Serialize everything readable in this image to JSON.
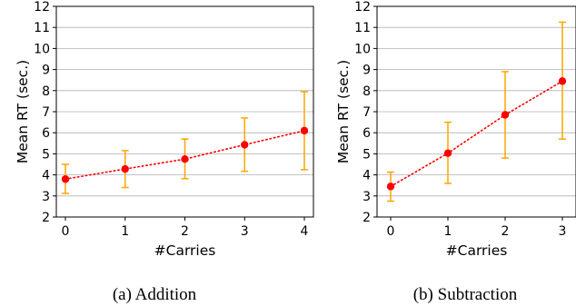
{
  "chart_data": [
    {
      "type": "line",
      "caption": "(a) Addition",
      "xlabel": "#Carries",
      "ylabel": "Mean RT (sec.)",
      "x": [
        0,
        1,
        2,
        3,
        4
      ],
      "ylim": [
        2,
        12
      ],
      "yticks": [
        2,
        3,
        4,
        5,
        6,
        7,
        8,
        9,
        10,
        11,
        12
      ],
      "grid": "horizontal",
      "series": [
        {
          "values": [
            3.8,
            4.28,
            4.75,
            5.43,
            6.1
          ],
          "error_low": [
            3.12,
            3.4,
            3.82,
            4.17,
            4.25
          ],
          "error_high": [
            4.5,
            5.15,
            5.7,
            6.7,
            7.95
          ]
        }
      ]
    },
    {
      "type": "line",
      "caption": "(b) Subtraction",
      "xlabel": "#Carries",
      "ylabel": "Mean RT (sec.)",
      "x": [
        0,
        1,
        2,
        3
      ],
      "ylim": [
        2,
        12
      ],
      "yticks": [
        2,
        3,
        4,
        5,
        6,
        7,
        8,
        9,
        10,
        11,
        12
      ],
      "grid": "horizontal",
      "series": [
        {
          "values": [
            3.45,
            5.03,
            6.85,
            8.45
          ],
          "error_low": [
            2.75,
            3.6,
            4.8,
            5.7
          ],
          "error_high": [
            4.13,
            6.5,
            8.9,
            11.25
          ]
        }
      ]
    }
  ],
  "colors": {
    "line": "#ff0000",
    "marker": "#ff0000",
    "errorbar": "#ffa500",
    "grid": "#b0b0b0",
    "axis": "#000000"
  }
}
